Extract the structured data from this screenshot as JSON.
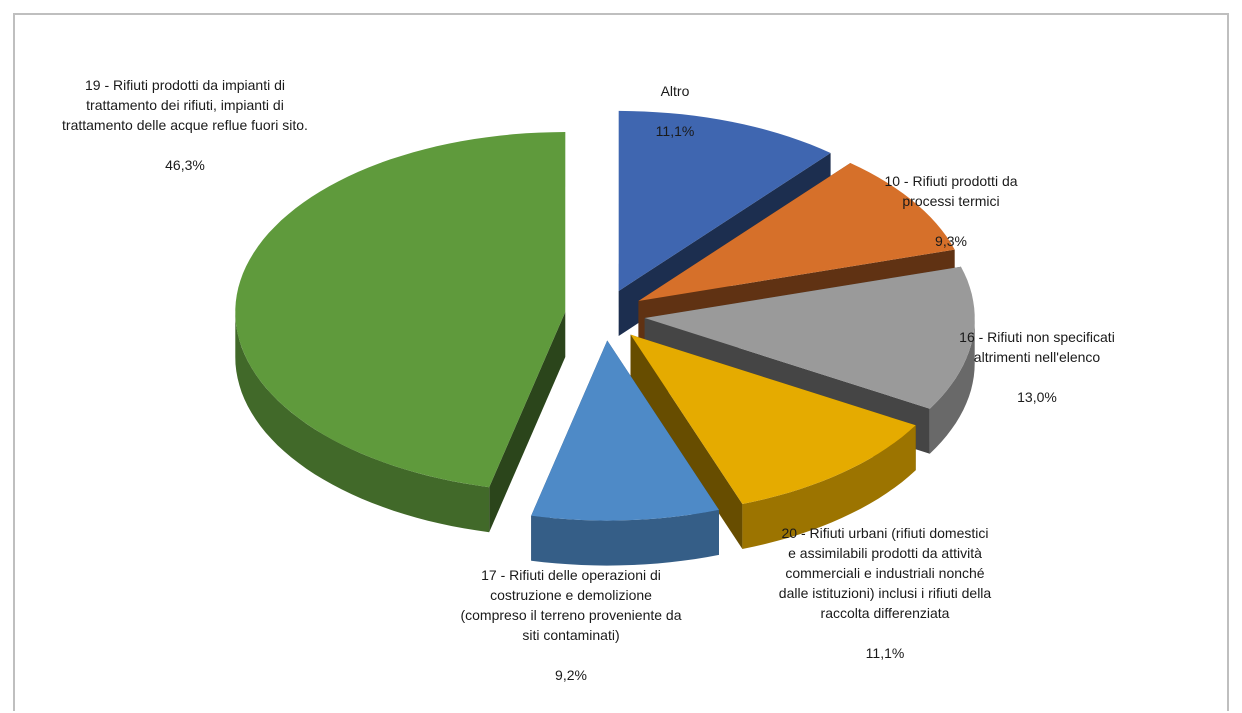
{
  "colors": {
    "altro": "#3f66b0",
    "cer10": "#d6702a",
    "cer16": "#9a9a9a",
    "cer20": "#e5ab00",
    "cer17": "#4e8ac7",
    "cer19": "#5f9a3c"
  },
  "chart_data": {
    "type": "pie",
    "style": "3d-exploded",
    "grid": false,
    "legend": "none",
    "slices": [
      {
        "key": "altro",
        "label": "Altro",
        "value": 11.1,
        "display": "11,1%"
      },
      {
        "key": "cer10",
        "label": "10 - Rifiuti prodotti da processi termici",
        "value": 9.3,
        "display": "9,3%"
      },
      {
        "key": "cer16",
        "label": "16 - Rifiuti non specificati altrimenti nell'elenco",
        "value": 13.0,
        "display": "13,0%"
      },
      {
        "key": "cer20",
        "label": "20 - Rifiuti urbani (rifiuti domestici e assimilabili prodotti da attività commerciali e industriali nonché dalle istituzioni) inclusi i rifiuti della raccolta differenziata",
        "value": 11.1,
        "display": "11,1%"
      },
      {
        "key": "cer17",
        "label": "17 - Rifiuti delle operazioni di costruzione e demolizione (compreso il terreno proveniente da siti contaminati)",
        "value": 9.2,
        "display": "9,2%"
      },
      {
        "key": "cer19",
        "label": "19 - Rifiuti prodotti da impianti di trattamento dei rifiuti, impianti di trattamento delle acque reflue fuori sito.",
        "value": 46.3,
        "display": "46,3%"
      }
    ]
  }
}
